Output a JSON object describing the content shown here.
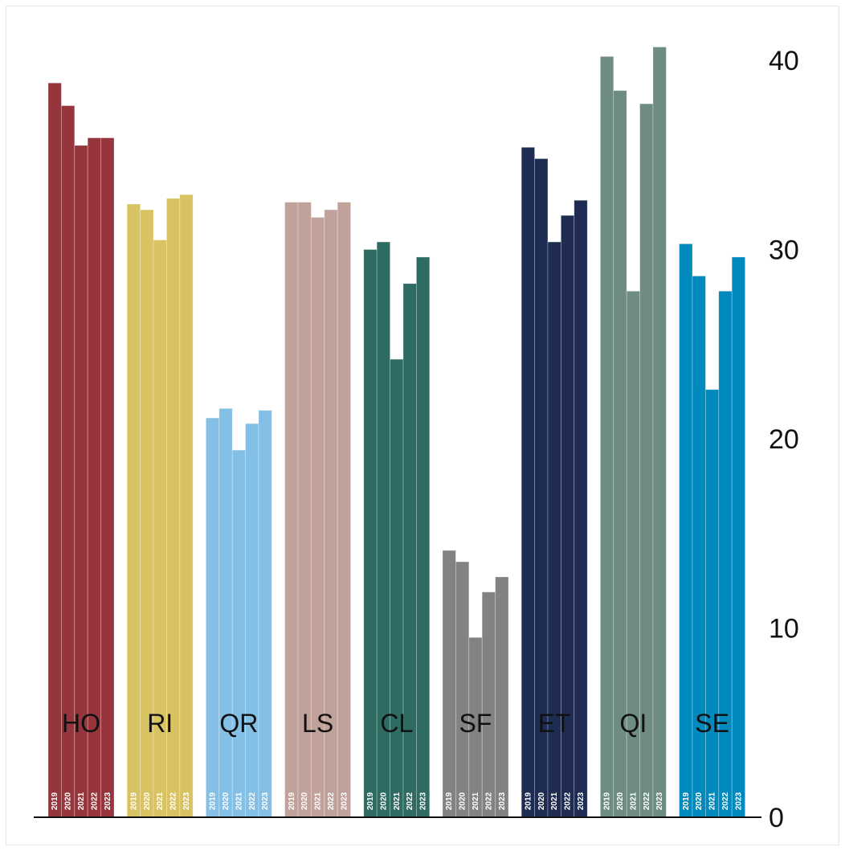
{
  "chart_data": {
    "type": "bar",
    "title": "",
    "xlabel": "",
    "ylabel": "",
    "ylim": [
      0,
      40
    ],
    "yticks": [
      0,
      10,
      20,
      30,
      40
    ],
    "y_axis_position": "right",
    "grid": false,
    "legend": "none",
    "years": [
      "2019",
      "2020",
      "2021",
      "2022",
      "2023"
    ],
    "groups": [
      {
        "label": "HO",
        "color": "#97353c",
        "values": [
          38.8,
          37.6,
          35.5,
          35.9,
          35.9
        ]
      },
      {
        "label": "RI",
        "color": "#d8c261",
        "values": [
          32.4,
          32.1,
          30.5,
          32.7,
          32.9
        ]
      },
      {
        "label": "QR",
        "color": "#84bfe5",
        "values": [
          21.1,
          21.6,
          19.4,
          20.8,
          21.5
        ]
      },
      {
        "label": "LS",
        "color": "#c0a29b",
        "values": [
          32.5,
          32.5,
          31.7,
          32.1,
          32.5
        ]
      },
      {
        "label": "CL",
        "color": "#2e6b62",
        "values": [
          30.0,
          30.4,
          24.2,
          28.2,
          29.6
        ]
      },
      {
        "label": "SF",
        "color": "#828282",
        "values": [
          14.1,
          13.5,
          9.5,
          11.9,
          12.7
        ]
      },
      {
        "label": "ET",
        "color": "#1e2b52",
        "values": [
          35.4,
          34.8,
          30.4,
          31.8,
          32.6
        ]
      },
      {
        "label": "QI",
        "color": "#6e8d80",
        "values": [
          40.2,
          38.4,
          27.8,
          37.7,
          40.7
        ]
      },
      {
        "label": "SE",
        "color": "#0089bd",
        "values": [
          30.3,
          28.6,
          22.6,
          27.8,
          29.6
        ]
      }
    ]
  }
}
